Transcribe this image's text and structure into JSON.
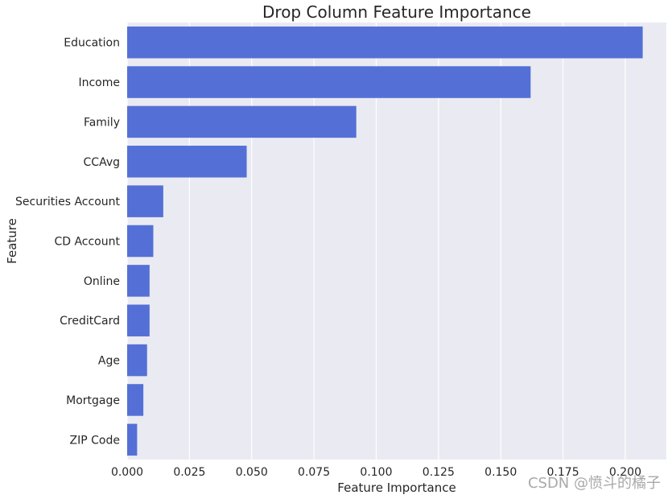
{
  "chart_data": {
    "type": "bar",
    "orientation": "horizontal",
    "title": "Drop Column Feature Importance",
    "xlabel": "Feature Importance",
    "ylabel": "Feature",
    "xlim": [
      0,
      0.2165
    ],
    "xticks": [
      "0.000",
      "0.025",
      "0.050",
      "0.075",
      "0.100",
      "0.125",
      "0.150",
      "0.175",
      "0.200"
    ],
    "grid": true,
    "bar_color": "#5470D6",
    "background_color": "#EAEAF2",
    "categories": [
      "Education",
      "Income",
      "Family",
      "CCAvg",
      "Securities Account",
      "CD Account",
      "Online",
      "CreditCard",
      "Age",
      "Mortgage",
      "ZIP Code"
    ],
    "values": [
      0.207,
      0.162,
      0.092,
      0.048,
      0.0145,
      0.0105,
      0.009,
      0.009,
      0.008,
      0.0065,
      0.004
    ]
  },
  "watermark": "CSDN @愤斗的橘子"
}
